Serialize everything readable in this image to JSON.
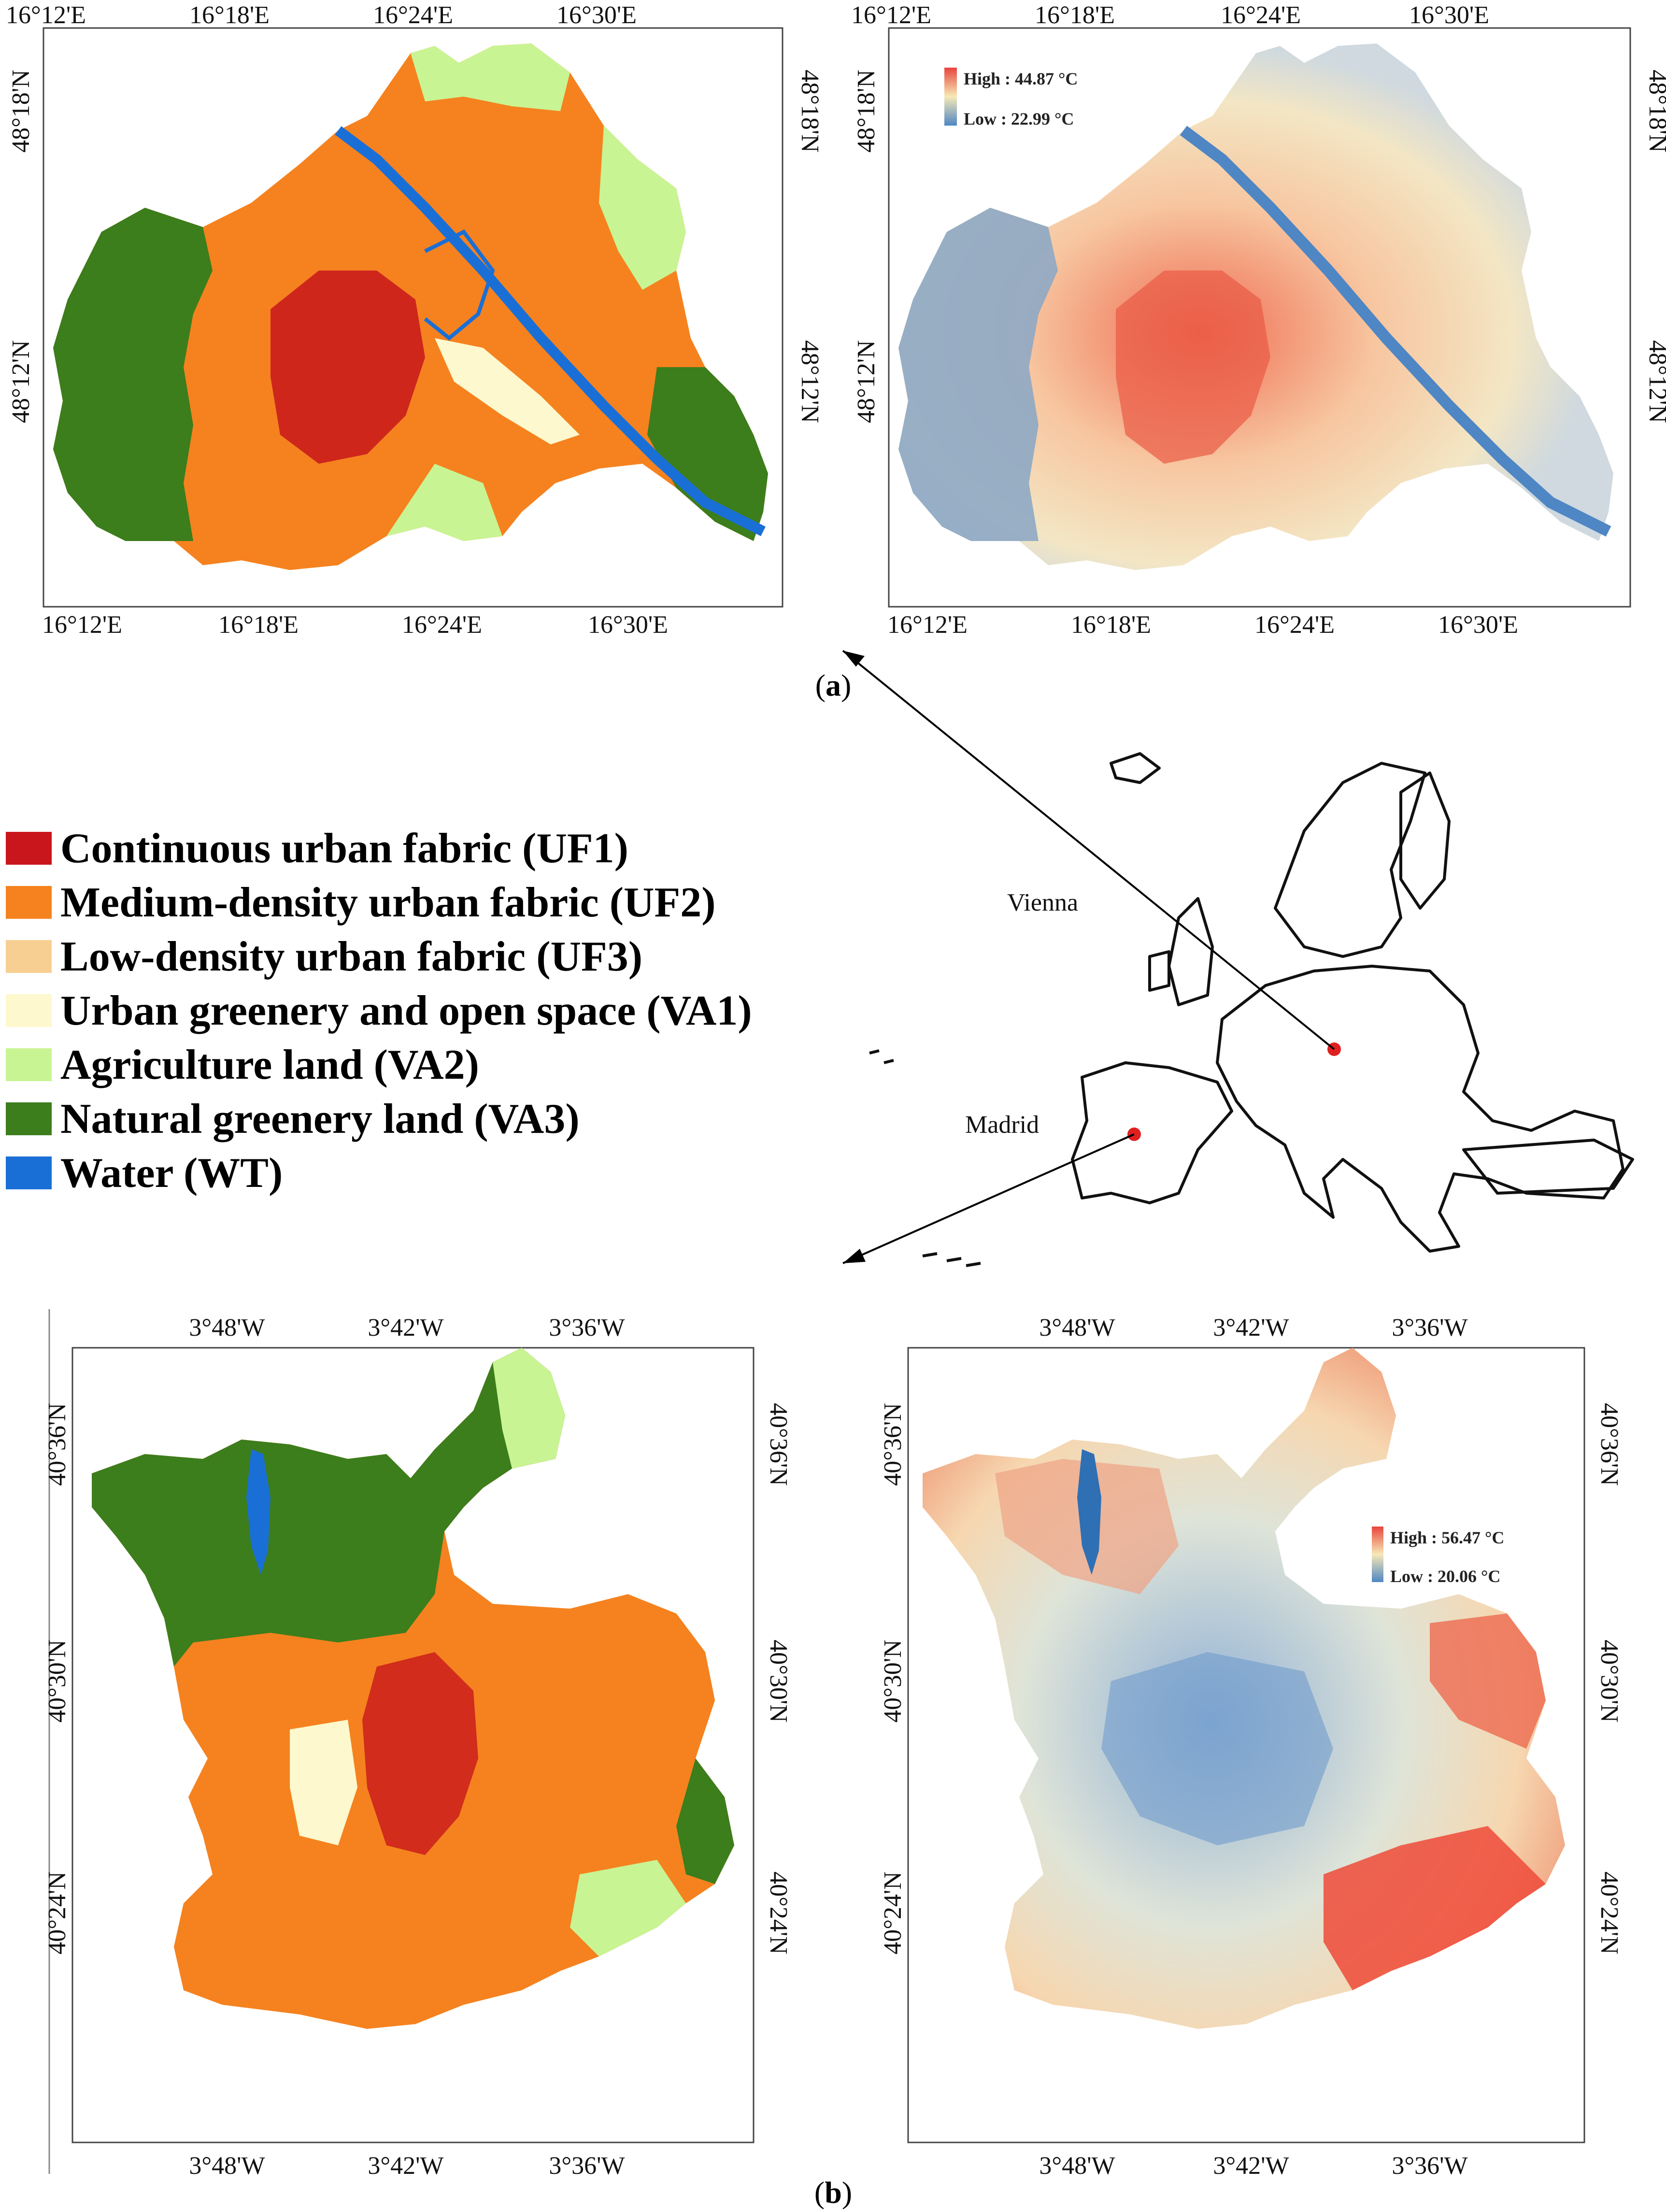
{
  "legend": {
    "items": [
      {
        "label": "Continuous urban fabric (UF1)",
        "color": "#c8161c"
      },
      {
        "label": "Medium-density urban fabric (UF2)",
        "color": "#f5821f"
      },
      {
        "label": "Low-density urban fabric (UF3)",
        "color": "#f8cf92"
      },
      {
        "label": "Urban greenery and open space (VA1)",
        "color": "#fdf8cd"
      },
      {
        "label": "Agriculture land (VA2)",
        "color": "#c9f493"
      },
      {
        "label": "Natural greenery land (VA3)",
        "color": "#3c7d1c"
      },
      {
        "label": "Water (WT)",
        "color": "#1a6fd6"
      }
    ]
  },
  "panel_a": {
    "label_open": "(",
    "label_letter": "a",
    "label_close": ")",
    "lon_ticks": [
      "16°12'E",
      "16°18'E",
      "16°24'E",
      "16°30'E"
    ],
    "lat_ticks": [
      "48°18'N",
      "48°12'N"
    ],
    "lst_high": "High : 44.87 °C",
    "lst_low": "Low : 22.99 °C"
  },
  "panel_b": {
    "label_open": "(",
    "label_letter": "b",
    "label_close": ")",
    "lon_ticks": [
      "3°48'W",
      "3°42'W",
      "3°36'W"
    ],
    "lat_ticks": [
      "40°36'N",
      "40°30'N",
      "40°24'N"
    ],
    "lst_high": "High : 56.47 °C",
    "lst_low": "Low : 20.06 °C"
  },
  "europe_map": {
    "cities": [
      {
        "name": "Vienna",
        "marker_color": "#e02020"
      },
      {
        "name": "Madrid",
        "marker_color": "#e02020"
      }
    ]
  },
  "colors": {
    "lst_hot": "#e8453c",
    "lst_mid": "#f6e9b6",
    "lst_cool": "#5b8fc7"
  }
}
